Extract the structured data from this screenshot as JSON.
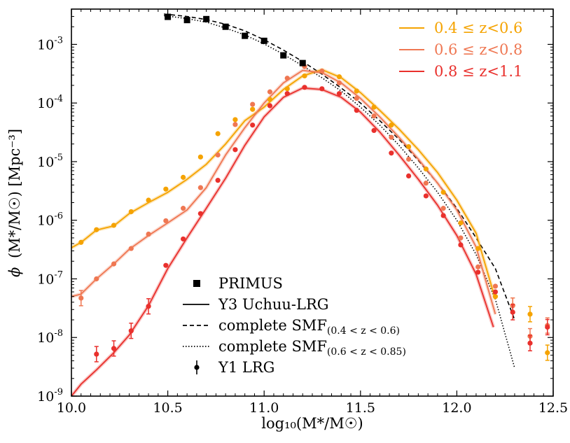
{
  "chart_data": {
    "type": "line",
    "xlabel": "log₁₀(M*/M☉)",
    "ylabel_symbol": "ϕ",
    "ylabel": "(M*/M☉) [Mpc⁻³]",
    "xlim": [
      10.0,
      12.5
    ],
    "ylim": [
      1e-09,
      0.004
    ],
    "y_scale": "log",
    "x_ticks": [
      "10.0",
      "10.5",
      "11.0",
      "11.5",
      "12.0",
      "12.5"
    ],
    "y_ticks": [
      {
        "base": "10",
        "exp": "-9",
        "value": 1e-09
      },
      {
        "base": "10",
        "exp": "-8",
        "value": 1e-08
      },
      {
        "base": "10",
        "exp": "-7",
        "value": 1e-07
      },
      {
        "base": "10",
        "exp": "-6",
        "value": 1e-06
      },
      {
        "base": "10",
        "exp": "-5",
        "value": 1e-05
      },
      {
        "base": "10",
        "exp": "-4",
        "value": 0.0001
      },
      {
        "base": "10",
        "exp": "-3",
        "value": 0.001
      }
    ],
    "colors": {
      "z1": "#f5a300",
      "z2": "#ef7752",
      "z3": "#e9302c",
      "black": "#000000"
    },
    "legend_top": {
      "placement": "top-right",
      "items": [
        {
          "label": "0.4 ≤ z<0.6",
          "color": "#f5a300"
        },
        {
          "label": "0.6 ≤ z<0.8",
          "color": "#ef7752"
        },
        {
          "label": "0.8 ≤ z<1.1",
          "color": "#e9302c"
        }
      ]
    },
    "legend_bottom": {
      "placement": "lower-center",
      "items": [
        {
          "label": "PRIMUS",
          "marker": "square"
        },
        {
          "label": "Y3 Uchuu-LRG",
          "marker": "solid-line"
        },
        {
          "label": "complete SMF",
          "sub": "(0.4 < z < 0.6)",
          "marker": "dashed-line"
        },
        {
          "label": "complete SMF",
          "sub": "(0.6 < z < 0.85)",
          "marker": "dotted-line"
        },
        {
          "label": "Y1 LRG",
          "marker": "errorbar"
        }
      ]
    },
    "primus": {
      "x": [
        10.5,
        10.6,
        10.7,
        10.8,
        10.9,
        11.0,
        11.1,
        11.2
      ],
      "y": [
        0.00295,
        0.0026,
        0.0027,
        0.002,
        0.0014,
        0.00115,
        0.00065,
        0.00048
      ]
    },
    "complete_smf_dashed": {
      "x": [
        10.48,
        10.6,
        10.7,
        10.8,
        10.9,
        11.0,
        11.1,
        11.2,
        11.3,
        11.4,
        11.5,
        11.6,
        11.7,
        11.8,
        11.9,
        12.0,
        12.1,
        12.2,
        12.3
      ],
      "y": [
        0.0033,
        0.003,
        0.00265,
        0.0022,
        0.0017,
        0.0012,
        0.0008,
        0.00051,
        0.00031,
        0.00018,
        0.0001,
        5e-05,
        2.4e-05,
        1.05e-05,
        4.3e-06,
        1.6e-06,
        5e-07,
        1.5e-07,
        2e-08
      ]
    },
    "complete_smf_dotted": {
      "x": [
        10.48,
        10.6,
        10.7,
        10.8,
        10.9,
        11.0,
        11.1,
        11.2,
        11.3,
        11.4,
        11.5,
        11.6,
        11.7,
        11.8,
        11.9,
        12.0,
        12.1,
        12.2,
        12.3
      ],
      "y": [
        0.0031,
        0.00275,
        0.0024,
        0.0019,
        0.00145,
        0.00102,
        0.00068,
        0.00043,
        0.00027,
        0.00016,
        8.5e-05,
        4.2e-05,
        1.9e-05,
        7.8e-06,
        3e-06,
        1e-06,
        2.6e-07,
        4.5e-08,
        3e-09
      ]
    },
    "series": [
      {
        "name": "0.4 ≤ z<0.6",
        "color": "#f5a300",
        "line_x": [
          10.0,
          10.05,
          10.13,
          10.22,
          10.3,
          10.4,
          10.5,
          10.6,
          10.7,
          10.8,
          10.9,
          11.0,
          11.1,
          11.2,
          11.3,
          11.4,
          11.5,
          11.6,
          11.7,
          11.8,
          11.9,
          12.0,
          12.1,
          12.2
        ],
        "line_y": [
          3.4e-07,
          4.2e-07,
          6.8e-07,
          8e-07,
          1.3e-06,
          2e-06,
          3e-06,
          5e-06,
          9e-06,
          2e-05,
          5e-05,
          8.5e-05,
          0.00017,
          0.00029,
          0.00037,
          0.00027,
          0.00015,
          7.5e-05,
          3.6e-05,
          1.6e-05,
          6.5e-06,
          2.2e-06,
          6e-07,
          4.5e-08
        ],
        "points_x": [
          10.05,
          10.13,
          10.22,
          10.31,
          10.4,
          10.49,
          10.58,
          10.67,
          10.76,
          10.85,
          10.94,
          11.03,
          11.12,
          11.21,
          11.3,
          11.39,
          11.48,
          11.57,
          11.66,
          11.75,
          11.84,
          11.93,
          12.02,
          12.11,
          12.2,
          12.29,
          12.38,
          12.47
        ],
        "points_y": [
          4.2e-07,
          6.9e-07,
          8.2e-07,
          1.4e-06,
          2.2e-06,
          3.4e-06,
          5.4e-06,
          1.2e-05,
          3e-05,
          5.2e-05,
          7.8e-05,
          0.000115,
          0.000175,
          0.00029,
          0.00035,
          0.00028,
          0.00016,
          8.5e-05,
          4.2e-05,
          1.8e-05,
          7.5e-06,
          3e-06,
          9e-07,
          3.3e-07,
          5e-08,
          3.5e-08,
          2.5e-08,
          5.5e-09
        ]
      },
      {
        "name": "0.6 ≤ z<0.8",
        "color": "#ef7752",
        "line_x": [
          10.0,
          10.05,
          10.13,
          10.22,
          10.3,
          10.4,
          10.5,
          10.6,
          10.7,
          10.8,
          10.9,
          11.0,
          11.1,
          11.2,
          11.3,
          11.4,
          11.5,
          11.6,
          11.7,
          11.8,
          11.9,
          12.0,
          12.1,
          12.2
        ],
        "line_y": [
          5e-08,
          5.5e-08,
          1e-07,
          1.8e-07,
          3.2e-07,
          5.5e-07,
          9e-07,
          1.5e-06,
          3.6e-06,
          1.3e-05,
          3.8e-05,
          0.0001,
          0.00022,
          0.00036,
          0.00033,
          0.00022,
          0.00012,
          5.8e-05,
          2.6e-05,
          1.1e-05,
          4.3e-06,
          1.5e-06,
          3.5e-07,
          2.5e-08
        ],
        "points_x": [
          10.05,
          10.13,
          10.22,
          10.31,
          10.4,
          10.49,
          10.58,
          10.67,
          10.76,
          10.85,
          10.94,
          11.03,
          11.12,
          11.21,
          11.3,
          11.39,
          11.48,
          11.57,
          11.66,
          11.75,
          11.84,
          11.93,
          12.02,
          12.11,
          12.2,
          12.29,
          12.38,
          12.47
        ],
        "points_y": [
          4.7e-08,
          1e-07,
          1.8e-07,
          3.3e-07,
          5.8e-07,
          9.8e-07,
          1.6e-06,
          3.6e-06,
          1.3e-05,
          4.3e-05,
          9.5e-05,
          0.000155,
          0.000265,
          0.00042,
          0.00035,
          0.00022,
          0.00012,
          6e-05,
          2.6e-05,
          1.1e-05,
          4.3e-06,
          1.6e-06,
          5e-07,
          1.6e-07,
          7.5e-08,
          3.5e-08,
          1.05e-08,
          1.6e-08
        ]
      },
      {
        "name": "0.8 ≤ z<1.1",
        "color": "#e9302c",
        "line_x": [
          10.0,
          10.05,
          10.13,
          10.22,
          10.3,
          10.4,
          10.5,
          10.6,
          10.7,
          10.8,
          10.9,
          11.0,
          11.1,
          11.2,
          11.3,
          11.4,
          11.5,
          11.6,
          11.7,
          11.8,
          11.9,
          12.0,
          12.1,
          12.19
        ],
        "line_y": [
          1e-09,
          1.6e-09,
          2.8e-09,
          5.5e-09,
          1.1e-08,
          3.5e-08,
          1.5e-07,
          5e-07,
          1.6e-06,
          5.2e-06,
          1.9e-05,
          5.8e-05,
          0.000125,
          0.00018,
          0.00017,
          0.000125,
          7e-05,
          3.2e-05,
          1.3e-05,
          5e-06,
          1.8e-06,
          5.5e-07,
          1.2e-07,
          1.5e-08
        ],
        "points_x": [
          10.13,
          10.22,
          10.31,
          10.4,
          10.49,
          10.58,
          10.67,
          10.76,
          10.85,
          10.94,
          11.03,
          11.12,
          11.21,
          11.3,
          11.39,
          11.48,
          11.57,
          11.66,
          11.75,
          11.84,
          11.93,
          12.02,
          12.11,
          12.2,
          12.29,
          12.38,
          12.47
        ],
        "points_y": [
          5.2e-09,
          6.5e-09,
          1.3e-08,
          3.4e-08,
          1.7e-07,
          4.8e-07,
          1.3e-06,
          4.8e-06,
          1.6e-05,
          4.2e-05,
          9e-05,
          0.000145,
          0.000185,
          0.000175,
          0.000145,
          7.5e-05,
          3.4e-05,
          1.4e-05,
          5.7e-06,
          2.6e-06,
          1.2e-06,
          3.8e-07,
          1.3e-07,
          6e-08,
          2.7e-08,
          8e-09,
          1.5e-08
        ]
      }
    ]
  }
}
